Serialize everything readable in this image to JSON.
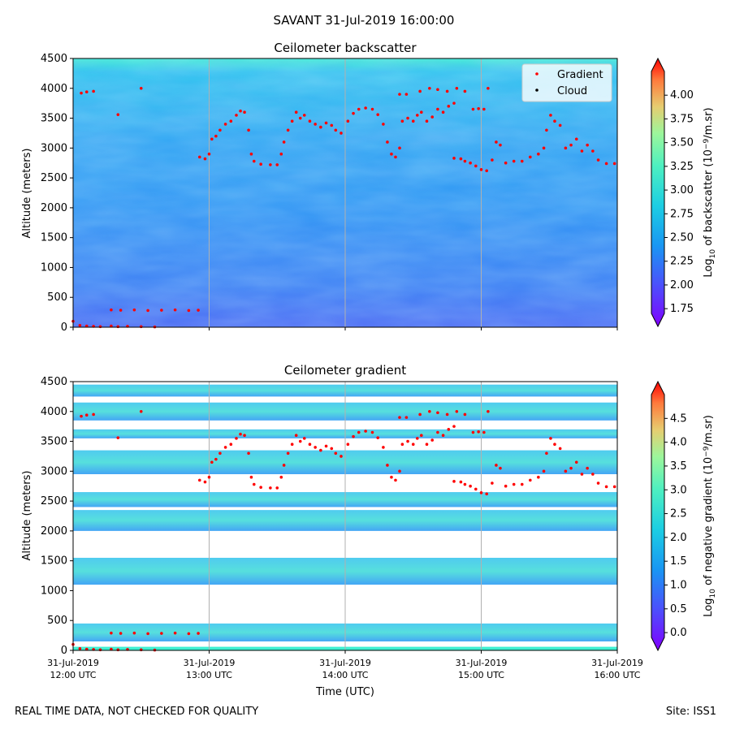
{
  "suptitle": "SAVANT 31-Jul-2019 16:00:00",
  "footer_left": "REAL TIME DATA, NOT CHECKED FOR QUALITY",
  "footer_right": "Site: ISS1",
  "chart_data": [
    {
      "type": "heatmap",
      "title": "Ceilometer backscatter",
      "xlabel": "",
      "ylabel": "Altitude (meters)",
      "ylim": [
        0,
        4500
      ],
      "yticks": [
        0,
        500,
        1000,
        1500,
        2000,
        2500,
        3000,
        3500,
        4000,
        4500
      ],
      "colorbar": {
        "label": "Log10 of backscatter (10−9/m.sr)",
        "label_parts": [
          "Log",
          "10",
          " of backscatter (10",
          "−9",
          "/m.sr)"
        ],
        "range": [
          1.7,
          4.25
        ],
        "ticks": [
          "1.75",
          "2.00",
          "2.25",
          "2.50",
          "2.75",
          "3.00",
          "3.25",
          "3.50",
          "3.75",
          "4.00"
        ]
      },
      "legend": {
        "position": "top-right",
        "entries": [
          "Gradient",
          "Cloud"
        ]
      },
      "colors": {
        "gradient": "#ff0000",
        "cloud": "#000000"
      }
    },
    {
      "type": "heatmap",
      "title": "Ceilometer gradient",
      "xlabel": "Time (UTC)",
      "ylabel": "Altitude (meters)",
      "ylim": [
        0,
        4500
      ],
      "yticks": [
        0,
        500,
        1000,
        1500,
        2000,
        2500,
        3000,
        3500,
        4000,
        4500
      ],
      "xticks": [
        [
          "31-Jul-2019",
          "12:00 UTC"
        ],
        [
          "31-Jul-2019",
          "13:00 UTC"
        ],
        [
          "31-Jul-2019",
          "14:00 UTC"
        ],
        [
          "31-Jul-2019",
          "15:00 UTC"
        ],
        [
          "31-Jul-2019",
          "16:00 UTC"
        ]
      ],
      "xlim_hours": [
        12,
        16
      ],
      "colorbar": {
        "label": "Log10 of negative gradient (10−9/m.sr)",
        "label_parts": [
          "Log",
          "10",
          " of negative gradient (10",
          "−9",
          "/m.sr)"
        ],
        "range": [
          -0.1,
          5.0
        ],
        "ticks": [
          "0.0",
          "0.5",
          "1.0",
          "1.5",
          "2.0",
          "2.5",
          "3.0",
          "3.5",
          "4.0",
          "4.5"
        ]
      },
      "gradient_layers_m": [
        [
          150,
          450
        ],
        [
          1100,
          1550
        ],
        [
          2000,
          2350
        ],
        [
          2400,
          2650
        ],
        [
          2950,
          3350
        ],
        [
          3550,
          3700
        ],
        [
          3850,
          4150
        ],
        [
          4250,
          4450
        ]
      ]
    }
  ],
  "gradient_points": [
    [
      12.0,
      100
    ],
    [
      12.05,
      30
    ],
    [
      12.1,
      20
    ],
    [
      12.15,
      15
    ],
    [
      12.2,
      10
    ],
    [
      12.28,
      20
    ],
    [
      12.33,
      10
    ],
    [
      12.4,
      15
    ],
    [
      12.5,
      10
    ],
    [
      12.6,
      5
    ],
    [
      12.28,
      290
    ],
    [
      12.35,
      285
    ],
    [
      12.45,
      290
    ],
    [
      12.55,
      280
    ],
    [
      12.65,
      285
    ],
    [
      12.75,
      290
    ],
    [
      12.85,
      280
    ],
    [
      12.92,
      285
    ],
    [
      12.06,
      3920
    ],
    [
      12.1,
      3940
    ],
    [
      12.15,
      3950
    ],
    [
      12.33,
      3560
    ],
    [
      12.5,
      4000
    ],
    [
      12.93,
      2850
    ],
    [
      12.97,
      2820
    ],
    [
      13.0,
      2900
    ],
    [
      13.02,
      3150
    ],
    [
      13.05,
      3200
    ],
    [
      13.08,
      3300
    ],
    [
      13.12,
      3400
    ],
    [
      13.16,
      3450
    ],
    [
      13.2,
      3550
    ],
    [
      13.23,
      3620
    ],
    [
      13.26,
      3600
    ],
    [
      13.29,
      3300
    ],
    [
      13.31,
      2900
    ],
    [
      13.33,
      2780
    ],
    [
      13.38,
      2730
    ],
    [
      13.45,
      2720
    ],
    [
      13.5,
      2720
    ],
    [
      13.53,
      2900
    ],
    [
      13.55,
      3100
    ],
    [
      13.58,
      3300
    ],
    [
      13.61,
      3450
    ],
    [
      13.64,
      3600
    ],
    [
      13.67,
      3500
    ],
    [
      13.7,
      3550
    ],
    [
      13.74,
      3450
    ],
    [
      13.78,
      3400
    ],
    [
      13.82,
      3350
    ],
    [
      13.86,
      3420
    ],
    [
      13.9,
      3380
    ],
    [
      13.93,
      3300
    ],
    [
      13.97,
      3250
    ],
    [
      14.02,
      3450
    ],
    [
      14.06,
      3580
    ],
    [
      14.1,
      3650
    ],
    [
      14.15,
      3670
    ],
    [
      14.2,
      3650
    ],
    [
      14.24,
      3560
    ],
    [
      14.28,
      3400
    ],
    [
      14.31,
      3100
    ],
    [
      14.34,
      2900
    ],
    [
      14.37,
      2850
    ],
    [
      14.4,
      3000
    ],
    [
      14.42,
      3450
    ],
    [
      14.46,
      3500
    ],
    [
      14.5,
      3450
    ],
    [
      14.53,
      3550
    ],
    [
      14.56,
      3600
    ],
    [
      14.6,
      3450
    ],
    [
      14.64,
      3520
    ],
    [
      14.68,
      3650
    ],
    [
      14.72,
      3600
    ],
    [
      14.76,
      3700
    ],
    [
      14.8,
      3750
    ],
    [
      14.4,
      3900
    ],
    [
      14.45,
      3900
    ],
    [
      14.55,
      3950
    ],
    [
      14.62,
      4000
    ],
    [
      14.68,
      3980
    ],
    [
      14.75,
      3950
    ],
    [
      14.82,
      4000
    ],
    [
      14.88,
      3950
    ],
    [
      14.94,
      3650
    ],
    [
      14.98,
      3660
    ],
    [
      15.02,
      3650
    ],
    [
      15.05,
      4000
    ],
    [
      14.8,
      2830
    ],
    [
      14.85,
      2820
    ],
    [
      14.88,
      2780
    ],
    [
      14.92,
      2750
    ],
    [
      14.96,
      2700
    ],
    [
      15.0,
      2640
    ],
    [
      15.04,
      2620
    ],
    [
      15.08,
      2800
    ],
    [
      15.11,
      3100
    ],
    [
      15.14,
      3050
    ],
    [
      15.18,
      2750
    ],
    [
      15.24,
      2780
    ],
    [
      15.3,
      2780
    ],
    [
      15.36,
      2850
    ],
    [
      15.42,
      2900
    ],
    [
      15.46,
      3000
    ],
    [
      15.48,
      3300
    ],
    [
      15.51,
      3550
    ],
    [
      15.54,
      3450
    ],
    [
      15.58,
      3380
    ],
    [
      15.62,
      3000
    ],
    [
      15.66,
      3050
    ],
    [
      15.7,
      3150
    ],
    [
      15.74,
      2950
    ],
    [
      15.78,
      3050
    ],
    [
      15.82,
      2950
    ],
    [
      15.86,
      2800
    ],
    [
      15.92,
      2740
    ],
    [
      15.98,
      2740
    ]
  ]
}
